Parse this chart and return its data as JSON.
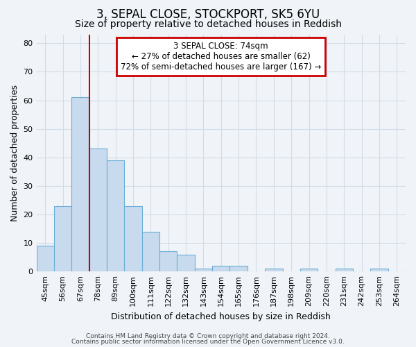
{
  "title": "3, SEPAL CLOSE, STOCKPORT, SK5 6YU",
  "subtitle": "Size of property relative to detached houses in Reddish",
  "xlabel": "Distribution of detached houses by size in Reddish",
  "ylabel": "Number of detached properties",
  "bar_color": "#c8daed",
  "bar_edge_color": "#6aaed6",
  "background_color": "#f0f4f8",
  "plot_bg_color": "#f0f4f8",
  "grid_color": "#d0dce8",
  "categories": [
    "45sqm",
    "56sqm",
    "67sqm",
    "78sqm",
    "89sqm",
    "100sqm",
    "111sqm",
    "122sqm",
    "132sqm",
    "143sqm",
    "154sqm",
    "165sqm",
    "176sqm",
    "187sqm",
    "198sqm",
    "209sqm",
    "220sqm",
    "231sqm",
    "242sqm",
    "253sqm",
    "264sqm"
  ],
  "values": [
    9,
    23,
    61,
    43,
    39,
    23,
    14,
    7,
    6,
    1,
    2,
    2,
    0,
    1,
    0,
    1,
    0,
    1,
    0,
    1,
    0
  ],
  "ylim": [
    0,
    83
  ],
  "yticks": [
    0,
    10,
    20,
    30,
    40,
    50,
    60,
    70,
    80
  ],
  "red_line_x": 2.5,
  "annotation_text_line1": "3 SEPAL CLOSE: 74sqm",
  "annotation_text_line2": "← 27% of detached houses are smaller (62)",
  "annotation_text_line3": "72% of semi-detached houses are larger (167) →",
  "annotation_box_color": "#ffffff",
  "annotation_box_edge": "#cc0000",
  "red_line_color": "#cc0000",
  "title_fontsize": 12,
  "subtitle_fontsize": 10,
  "tick_fontsize": 8,
  "label_fontsize": 9,
  "ann_fontsize": 8.5,
  "footer1": "Contains HM Land Registry data © Crown copyright and database right 2024.",
  "footer2": "Contains public sector information licensed under the Open Government Licence v3.0."
}
